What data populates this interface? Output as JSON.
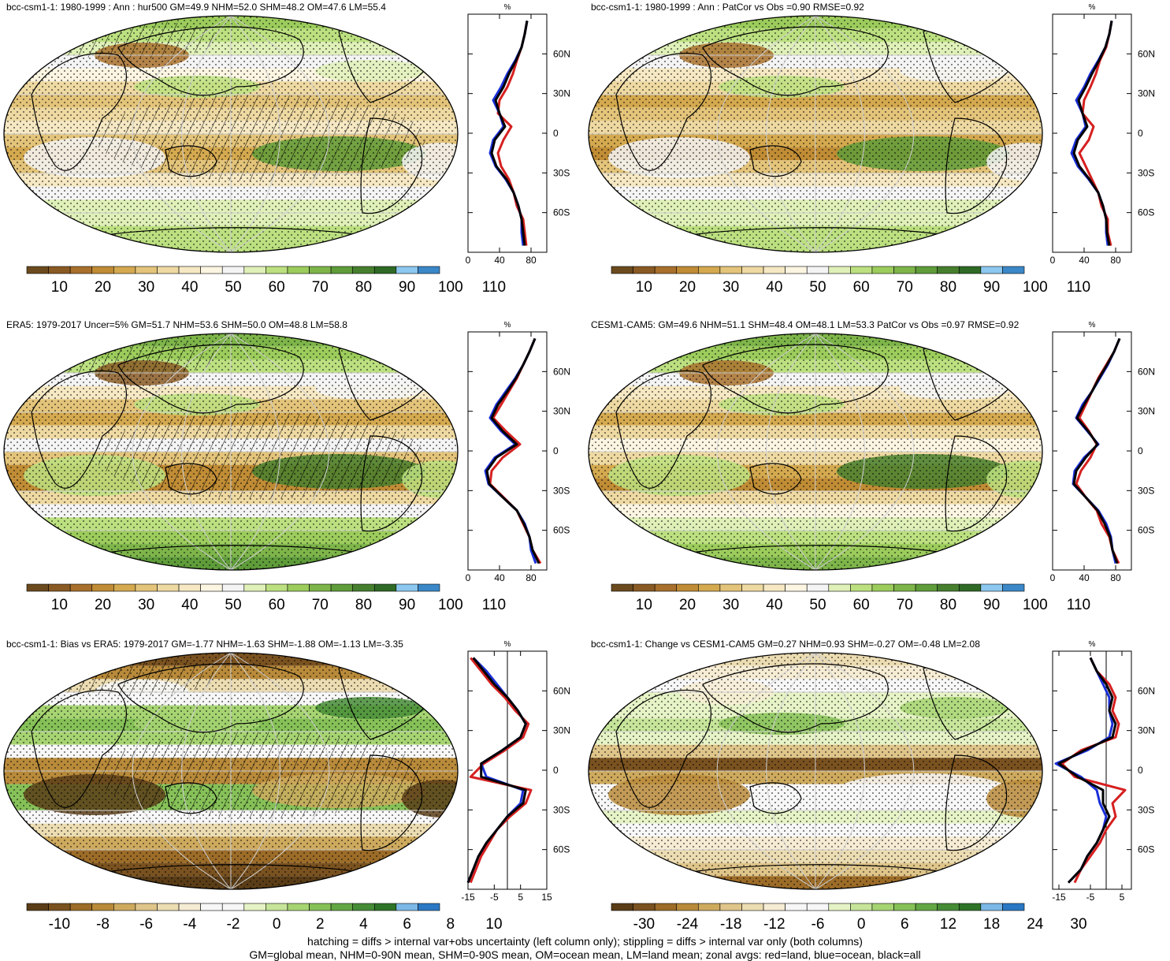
{
  "footer": {
    "line1": "hatching = diffs > internal var+obs uncertainty (left column only); stippling = diffs > internal var only (both columns)",
    "line2": "GM=global mean, NHM=0-90N mean, SHM=0-90S mean, OM=ocean mean, LM=land mean; zonal avgs: red=land, blue=ocean, black=all"
  },
  "colors": {
    "abs_palette": [
      "#6b4a1e",
      "#8a5a24",
      "#a8702c",
      "#c08c35",
      "#d4a94f",
      "#e3c47a",
      "#eed9a2",
      "#f5e8c3",
      "#fbf5e2",
      "#f4f4f4",
      "#dff0b8",
      "#bce080",
      "#9ccc5c",
      "#7eb54a",
      "#5f9c3a",
      "#467f2e",
      "#2f6a26",
      "#8cc8ef",
      "#3b88c8"
    ],
    "diff_palette": [
      "#5a3d17",
      "#7a5220",
      "#9c6c28",
      "#b88a3a",
      "#ceaa5e",
      "#dfc58a",
      "#ecdcb2",
      "#f6ecd4",
      "#f7f7f7",
      "#f7f7f7",
      "#e6f3c6",
      "#c6e59a",
      "#a6d472",
      "#86c158",
      "#63a744",
      "#458c36",
      "#2e7428",
      "#7cb8e6",
      "#2a78c4"
    ],
    "land": "#d62020",
    "ocean": "#1a2fd8",
    "all": "#000000"
  },
  "panels": [
    {
      "title": "bcc-csm1-1: 1980-1999 : Ann : hur500 GM=49.9 NHM=52.0 SHM=48.2 OM=47.6 LM=55.4",
      "kind": "abs",
      "colorbar_labels": [
        "10",
        "20",
        "30",
        "40",
        "50",
        "60",
        "70",
        "80",
        "90",
        "100",
        "110"
      ],
      "zonal_unit": "%",
      "zonal_xticks": [
        "0",
        "40",
        "80"
      ],
      "lat_labels": [
        "60N",
        "30N",
        "0",
        "30S",
        "60S"
      ],
      "hatched": true
    },
    {
      "title": "bcc-csm1-1: 1980-1999 : Ann : PatCor vs Obs =0.90 RMSE=0.92",
      "kind": "abs",
      "colorbar_labels": [
        "10",
        "20",
        "30",
        "40",
        "50",
        "60",
        "70",
        "80",
        "90",
        "100",
        "110"
      ],
      "zonal_unit": "%",
      "zonal_xticks": [
        "0",
        "40",
        "80"
      ],
      "lat_labels": [
        "60N",
        "30N",
        "0",
        "30S",
        "60S"
      ],
      "hatched": false
    },
    {
      "title": "ERA5: 1979-2017 Uncer=5% GM=51.7 NHM=53.6 SHM=50.0 OM=48.8 LM=58.8",
      "kind": "abs",
      "colorbar_labels": [
        "10",
        "20",
        "30",
        "40",
        "50",
        "60",
        "70",
        "80",
        "90",
        "100",
        "110"
      ],
      "zonal_unit": "%",
      "zonal_xticks": [
        "0",
        "40",
        "80"
      ],
      "lat_labels": [
        "60N",
        "30N",
        "0",
        "30S",
        "60S"
      ],
      "hatched": true
    },
    {
      "title": "CESM1-CAM5: GM=49.6 NHM=51.1 SHM=48.4 OM=48.1 LM=53.3 PatCor vs Obs =0.97 RMSE=0.92",
      "kind": "abs",
      "colorbar_labels": [
        "10",
        "20",
        "30",
        "40",
        "50",
        "60",
        "70",
        "80",
        "90",
        "100",
        "110"
      ],
      "zonal_unit": "%",
      "zonal_xticks": [
        "0",
        "40",
        "80"
      ],
      "lat_labels": [
        "60N",
        "30N",
        "0",
        "30S",
        "60S"
      ],
      "hatched": false
    },
    {
      "title": "bcc-csm1-1: Bias vs ERA5: 1979-2017 GM=-1.77 NHM=-1.63 SHM=-1.88 OM=-1.13 LM=-3.35",
      "kind": "diff",
      "colorbar_labels": [
        "-10",
        "-8",
        "-6",
        "-4",
        "-2",
        "0",
        "2",
        "4",
        "6",
        "8",
        "10"
      ],
      "zonal_unit": "%",
      "zonal_xticks": [
        "-15",
        "-5",
        "5",
        "15"
      ],
      "lat_labels": [
        "60N",
        "30N",
        "0",
        "30S",
        "60S"
      ],
      "hatched": true
    },
    {
      "title": "bcc-csm1-1: Change vs CESM1-CAM5 GM=0.27 NHM=0.93 SHM=-0.27 OM=-0.48 LM=2.08",
      "kind": "diff",
      "colorbar_labels": [
        "-30",
        "-24",
        "-18",
        "-12",
        "-6",
        "0",
        "6",
        "12",
        "18",
        "24",
        "30"
      ],
      "zonal_unit": "%",
      "zonal_xticks": [
        "-15",
        "-5",
        "5"
      ],
      "lat_labels": [
        "60N",
        "30N",
        "0",
        "30S",
        "60S"
      ],
      "hatched": false
    }
  ],
  "chart_data": [
    {
      "type": "line",
      "title": "bcc-csm1-1: 1980-1999 : Ann : hur500 GM=49.9 NHM=52.0 SHM=48.2 OM=47.6 LM=55.4",
      "xlabel": "%",
      "xlim": [
        0,
        100
      ],
      "ylim": [
        -90,
        90
      ],
      "y": [
        85,
        75,
        65,
        55,
        45,
        35,
        25,
        15,
        5,
        -5,
        -15,
        -25,
        -35,
        -45,
        -55,
        -65,
        -75,
        -85
      ],
      "series": [
        {
          "name": "red=land",
          "values": [
            75,
            72,
            68,
            62,
            57,
            50,
            40,
            38,
            55,
            45,
            38,
            42,
            52,
            58,
            62,
            70,
            72,
            74
          ]
        },
        {
          "name": "blue=ocean",
          "values": [
            75,
            72,
            68,
            60,
            50,
            42,
            32,
            40,
            45,
            32,
            28,
            35,
            48,
            58,
            64,
            68,
            68,
            70
          ]
        },
        {
          "name": "black=all",
          "values": [
            75,
            72,
            68,
            61,
            52,
            45,
            35,
            40,
            47,
            34,
            30,
            36,
            49,
            58,
            64,
            68,
            70,
            72
          ]
        }
      ]
    },
    {
      "type": "line",
      "title": "bcc-csm1-1: 1980-1999 : Ann : PatCor vs Obs =0.90 RMSE=0.92",
      "xlabel": "%",
      "xlim": [
        0,
        100
      ],
      "ylim": [
        -90,
        90
      ],
      "y": [
        85,
        75,
        65,
        55,
        45,
        35,
        25,
        15,
        5,
        -5,
        -15,
        -25,
        -35,
        -45,
        -55,
        -65,
        -75,
        -85
      ],
      "series": [
        {
          "name": "red=land",
          "values": [
            75,
            72,
            68,
            60,
            55,
            48,
            40,
            38,
            52,
            46,
            34,
            42,
            50,
            58,
            62,
            70,
            70,
            74
          ]
        },
        {
          "name": "blue=ocean",
          "values": [
            75,
            72,
            67,
            58,
            48,
            40,
            30,
            38,
            42,
            30,
            24,
            32,
            46,
            58,
            64,
            68,
            68,
            70
          ]
        },
        {
          "name": "black=all",
          "values": [
            75,
            72,
            67,
            59,
            50,
            42,
            33,
            38,
            44,
            32,
            27,
            34,
            47,
            58,
            64,
            68,
            69,
            72
          ]
        }
      ]
    },
    {
      "type": "line",
      "title": "ERA5: 1979-2017 Uncer=5% GM=51.7 NHM=53.6 SHM=50.0 OM=48.8 LM=58.8",
      "xlabel": "%",
      "xlim": [
        0,
        100
      ],
      "ylim": [
        -90,
        90
      ],
      "y": [
        85,
        75,
        65,
        55,
        45,
        35,
        25,
        15,
        5,
        -5,
        -15,
        -25,
        -35,
        -45,
        -55,
        -65,
        -75,
        -85
      ],
      "series": [
        {
          "name": "red=land",
          "values": [
            85,
            78,
            70,
            62,
            52,
            42,
            32,
            48,
            66,
            44,
            30,
            28,
            45,
            62,
            70,
            78,
            82,
            92
          ]
        },
        {
          "name": "blue=ocean",
          "values": [
            85,
            78,
            70,
            60,
            48,
            36,
            28,
            42,
            60,
            34,
            22,
            26,
            44,
            62,
            72,
            78,
            80,
            86
          ]
        },
        {
          "name": "black=all",
          "values": [
            85,
            78,
            70,
            61,
            50,
            38,
            30,
            44,
            62,
            36,
            24,
            27,
            44,
            62,
            71,
            78,
            82,
            90
          ]
        }
      ]
    },
    {
      "type": "line",
      "title": "CESM1-CAM5: GM=49.6 NHM=51.1 SHM=48.4 OM=48.1 LM=53.3 PatCor vs Obs =0.97 RMSE=0.92",
      "xlabel": "%",
      "xlim": [
        0,
        100
      ],
      "ylim": [
        -90,
        90
      ],
      "y": [
        85,
        75,
        65,
        55,
        45,
        35,
        25,
        15,
        5,
        -5,
        -15,
        -25,
        -35,
        -45,
        -55,
        -65,
        -75,
        -85
      ],
      "series": [
        {
          "name": "red=land",
          "values": [
            85,
            78,
            68,
            58,
            50,
            42,
            34,
            46,
            56,
            48,
            36,
            30,
            42,
            56,
            62,
            72,
            76,
            84
          ]
        },
        {
          "name": "blue=ocean",
          "values": [
            85,
            78,
            70,
            60,
            50,
            38,
            30,
            44,
            58,
            40,
            28,
            26,
            42,
            58,
            68,
            74,
            76,
            80
          ]
        },
        {
          "name": "black=all",
          "values": [
            85,
            78,
            69,
            59,
            50,
            40,
            31,
            45,
            57,
            42,
            30,
            27,
            42,
            57,
            66,
            73,
            76,
            82
          ]
        }
      ]
    },
    {
      "type": "line",
      "title": "bcc-csm1-1: Bias vs ERA5: 1979-2017 GM=-1.77 NHM=-1.63 SHM=-1.88 OM=-1.13 LM=-3.35",
      "xlabel": "%",
      "xlim": [
        -15,
        15
      ],
      "ylim": [
        -90,
        90
      ],
      "y": [
        85,
        75,
        65,
        55,
        45,
        35,
        25,
        15,
        5,
        -5,
        -15,
        -25,
        -35,
        -45,
        -55,
        -65,
        -75,
        -85
      ],
      "series": [
        {
          "name": "red=land",
          "values": [
            -14,
            -10,
            -6,
            -1,
            3,
            8,
            6,
            -1,
            -9,
            -14,
            9,
            7,
            1,
            -4,
            -7,
            -10,
            -12,
            -14
          ]
        },
        {
          "name": "blue=ocean",
          "values": [
            -13,
            -8,
            -4,
            0,
            4,
            7,
            5,
            -2,
            -10,
            -8,
            6,
            5,
            0,
            -4,
            -8,
            -11,
            -13,
            -15
          ]
        },
        {
          "name": "black=all",
          "values": [
            -13,
            -9,
            -5,
            0,
            4,
            7,
            5,
            -2,
            -10,
            -10,
            7,
            6,
            0,
            -4,
            -8,
            -11,
            -13,
            -15
          ]
        }
      ]
    },
    {
      "type": "line",
      "title": "bcc-csm1-1: Change vs CESM1-CAM5 GM=0.27 NHM=0.93 SHM=-0.27 OM=-0.48 LM=2.08",
      "xlabel": "%",
      "xlim": [
        -17,
        8
      ],
      "ylim": [
        -90,
        90
      ],
      "y": [
        85,
        75,
        65,
        55,
        45,
        35,
        25,
        15,
        5,
        -5,
        -15,
        -25,
        -35,
        -45,
        -55,
        -65,
        -75,
        -85
      ],
      "series": [
        {
          "name": "red=land",
          "values": [
            -5,
            -3,
            1,
            3,
            2,
            4,
            3,
            -8,
            -14,
            -10,
            6,
            2,
            3,
            0,
            -2,
            -5,
            -8,
            -10
          ]
        },
        {
          "name": "blue=ocean",
          "values": [
            -5,
            -3,
            -1,
            1,
            1,
            2,
            1,
            -6,
            -16,
            -8,
            -3,
            -2,
            0,
            -1,
            -3,
            -6,
            -8,
            -12
          ]
        },
        {
          "name": "black=all",
          "values": [
            -5,
            -3,
            0,
            2,
            1,
            3,
            2,
            -7,
            -15,
            -9,
            -1,
            -1,
            1,
            -1,
            -3,
            -6,
            -8,
            -12
          ]
        }
      ]
    }
  ]
}
